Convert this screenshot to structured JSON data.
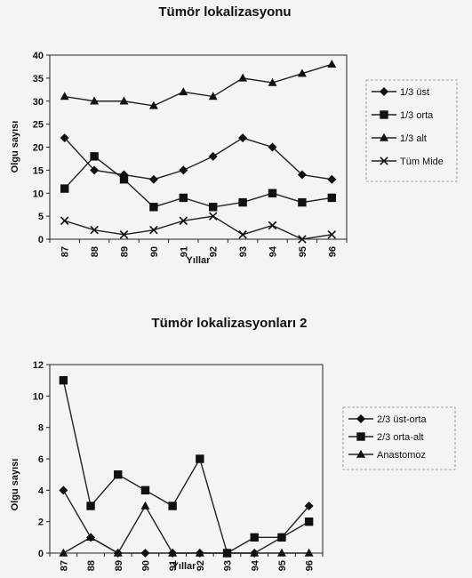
{
  "chart_data": [
    {
      "type": "line",
      "title": "Tümör lokalizasyonu",
      "xlabel": "Yıllar",
      "ylabel": "Olgu sayısı",
      "categories": [
        "87",
        "88",
        "89",
        "90",
        "91",
        "92",
        "93",
        "94",
        "95",
        "96"
      ],
      "ylim": [
        0,
        40
      ],
      "yticks": [
        "0",
        "5",
        "10",
        "15",
        "20",
        "25",
        "30",
        "35",
        "40"
      ],
      "legend_position": "right",
      "series": [
        {
          "name": "1/3 üst",
          "marker": "diamond",
          "values": [
            22,
            15,
            14,
            13,
            15,
            18,
            22,
            20,
            14,
            13
          ]
        },
        {
          "name": "1/3 orta",
          "marker": "square",
          "values": [
            11,
            18,
            13,
            7,
            9,
            7,
            8,
            10,
            8,
            9
          ]
        },
        {
          "name": "1/3 alt",
          "marker": "triangle",
          "values": [
            31,
            30,
            30,
            29,
            32,
            31,
            35,
            34,
            36,
            38
          ]
        },
        {
          "name": "Tüm Mide",
          "marker": "x",
          "values": [
            4,
            2,
            1,
            2,
            4,
            5,
            1,
            3,
            0,
            1
          ]
        }
      ]
    },
    {
      "type": "line",
      "title": "Tümör lokalizasyonları 2",
      "xlabel": "Yıllar",
      "ylabel": "Olgu sayısı",
      "categories": [
        "87",
        "88",
        "89",
        "90",
        "91",
        "92",
        "93",
        "94",
        "95",
        "96"
      ],
      "ylim": [
        0,
        12
      ],
      "yticks": [
        "0",
        "2",
        "4",
        "6",
        "8",
        "10",
        "12"
      ],
      "legend_position": "right",
      "series": [
        {
          "name": "2/3 üst-orta",
          "marker": "diamond",
          "values": [
            4,
            1,
            0,
            0,
            0,
            0,
            0,
            0,
            1,
            3
          ]
        },
        {
          "name": "2/3 orta-alt",
          "marker": "square",
          "values": [
            11,
            3,
            5,
            4,
            3,
            6,
            0,
            1,
            1,
            2
          ]
        },
        {
          "name": "Anastomoz",
          "marker": "triangle",
          "values": [
            0,
            1,
            0,
            3,
            0,
            0,
            0,
            0,
            0,
            0
          ]
        }
      ]
    }
  ]
}
